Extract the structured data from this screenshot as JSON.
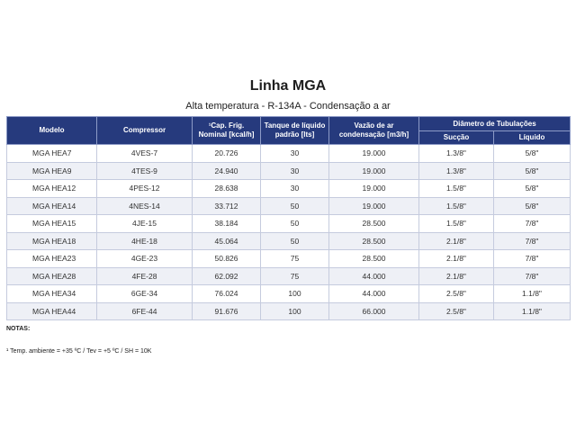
{
  "title": "Linha MGA",
  "subtitle": "Alta temperatura - R-134A - Condensação a ar",
  "table": {
    "headers": {
      "modelo": "Modelo",
      "compressor": "Compressor",
      "cap_frig": "¹Cap. Frig. Nominal [kcal/h]",
      "tanque": "Tanque de líquido padrão [lts]",
      "vazao": "Vazão de ar condensação [m3/h]",
      "diametro": "Diâmetro de Tubulações",
      "succao": "Sucção",
      "liquido": "Líquido"
    },
    "rows": [
      {
        "modelo": "MGA HEA7",
        "compressor": "4VES-7",
        "cap": "20.726",
        "tanque": "30",
        "vazao": "19.000",
        "succao": "1.3/8\"",
        "liquido": "5/8\""
      },
      {
        "modelo": "MGA HEA9",
        "compressor": "4TES-9",
        "cap": "24.940",
        "tanque": "30",
        "vazao": "19.000",
        "succao": "1.3/8\"",
        "liquido": "5/8\""
      },
      {
        "modelo": "MGA HEA12",
        "compressor": "4PES-12",
        "cap": "28.638",
        "tanque": "30",
        "vazao": "19.000",
        "succao": "1.5/8\"",
        "liquido": "5/8\""
      },
      {
        "modelo": "MGA HEA14",
        "compressor": "4NES-14",
        "cap": "33.712",
        "tanque": "50",
        "vazao": "19.000",
        "succao": "1.5/8\"",
        "liquido": "5/8\""
      },
      {
        "modelo": "MGA HEA15",
        "compressor": "4JE-15",
        "cap": "38.184",
        "tanque": "50",
        "vazao": "28.500",
        "succao": "1.5/8\"",
        "liquido": "7/8\""
      },
      {
        "modelo": "MGA HEA18",
        "compressor": "4HE-18",
        "cap": "45.064",
        "tanque": "50",
        "vazao": "28.500",
        "succao": "2.1/8\"",
        "liquido": "7/8\""
      },
      {
        "modelo": "MGA HEA23",
        "compressor": "4GE-23",
        "cap": "50.826",
        "tanque": "75",
        "vazao": "28.500",
        "succao": "2.1/8\"",
        "liquido": "7/8\""
      },
      {
        "modelo": "MGA HEA28",
        "compressor": "4FE-28",
        "cap": "62.092",
        "tanque": "75",
        "vazao": "44.000",
        "succao": "2.1/8\"",
        "liquido": "7/8\""
      },
      {
        "modelo": "MGA HEA34",
        "compressor": "6GE-34",
        "cap": "76.024",
        "tanque": "100",
        "vazao": "44.000",
        "succao": "2.5/8\"",
        "liquido": "1.1/8\""
      },
      {
        "modelo": "MGA HEA44",
        "compressor": "6FE-44",
        "cap": "91.676",
        "tanque": "100",
        "vazao": "66.000",
        "succao": "2.5/8\"",
        "liquido": "1.1/8\""
      }
    ]
  },
  "notes": {
    "title": "NOTAS:",
    "footnote": "¹ Temp. ambiente = +35 ºC / Tev = +5 ºC / SH = 10K"
  },
  "colors": {
    "header_bg": "#263a7d",
    "row_alt_bg": "#eef0f6"
  }
}
